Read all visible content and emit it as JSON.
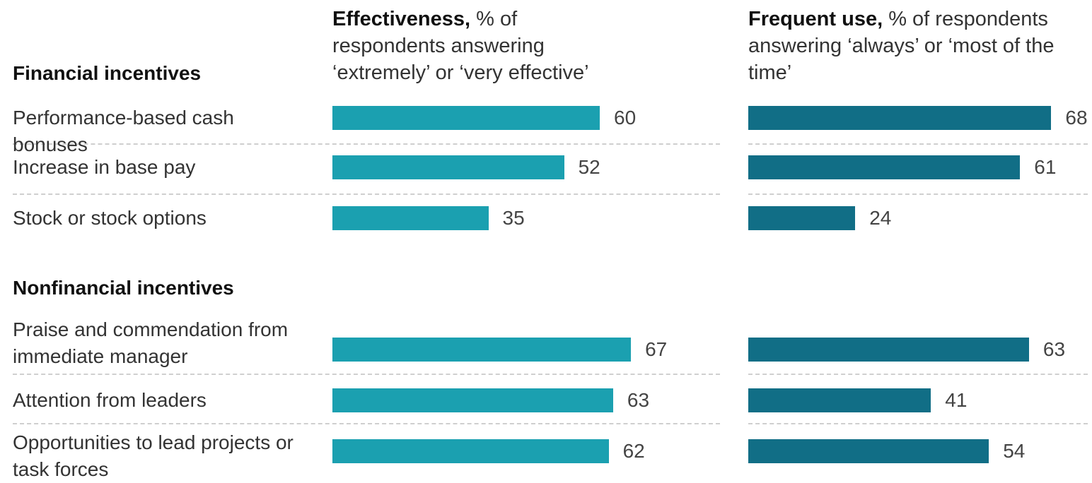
{
  "chart_data": {
    "type": "bar",
    "orientation": "horizontal",
    "panels": [
      {
        "title_bold": "Effectiveness,",
        "title_rest": " % of respondents answering ‘extremely’ or ‘very effective’",
        "color": "#1ba0b0"
      },
      {
        "title_bold": "Frequent use,",
        "title_rest": " % of respondents answering ‘always’ or ‘most of the time’",
        "color": "#116e86"
      }
    ],
    "groups": [
      {
        "name": "Financial incentives",
        "items": [
          {
            "label": "Performance-based cash bonuses",
            "values": [
              60,
              68
            ]
          },
          {
            "label": "Increase in base pay",
            "values": [
              52,
              61
            ]
          },
          {
            "label": "Stock or stock options",
            "values": [
              35,
              24
            ]
          }
        ]
      },
      {
        "name": "Nonfinancial incentives",
        "items": [
          {
            "label": "Praise and commendation from immediate manager",
            "values": [
              67,
              63
            ]
          },
          {
            "label": "Attention from leaders",
            "values": [
              63,
              41
            ]
          },
          {
            "label": "Opportunities to lead projects or task forces",
            "values": [
              62,
              54
            ]
          }
        ]
      }
    ],
    "xlim": [
      0,
      100
    ]
  }
}
